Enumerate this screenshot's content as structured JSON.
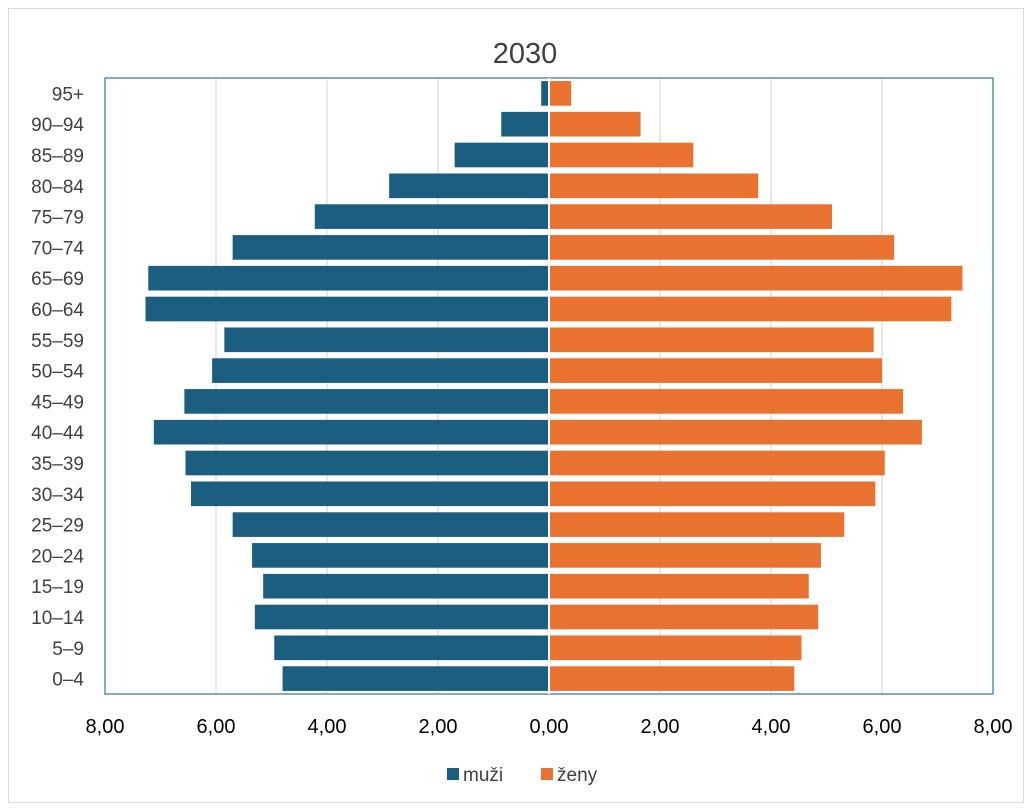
{
  "chart_data": {
    "type": "bar",
    "orientation": "horizontal",
    "title": "2030",
    "categories": [
      "0–4",
      "5–9",
      "10–14",
      "15–19",
      "20–24",
      "25–29",
      "30–34",
      "35–39",
      "40–44",
      "45–49",
      "50–54",
      "55–59",
      "60–64",
      "65–69",
      "70–74",
      "75–79",
      "80–84",
      "85–89",
      "90–94",
      "95+"
    ],
    "series": [
      {
        "name": "muži",
        "color": "#1b5e80",
        "side": "left",
        "values": [
          4.8,
          4.95,
          5.3,
          5.15,
          5.35,
          5.7,
          6.45,
          6.55,
          7.12,
          6.57,
          6.07,
          5.85,
          7.27,
          7.22,
          5.7,
          4.22,
          2.88,
          1.7,
          0.86,
          0.14
        ]
      },
      {
        "name": "ženy",
        "color": "#ea7231",
        "side": "right",
        "values": [
          4.42,
          4.55,
          4.85,
          4.68,
          4.9,
          5.32,
          5.88,
          6.05,
          6.72,
          6.38,
          6.0,
          5.85,
          7.25,
          7.45,
          6.22,
          5.1,
          3.77,
          2.6,
          1.65,
          0.4
        ]
      }
    ],
    "x_ticks": [
      "8,00",
      "6,00",
      "4,00",
      "2,00",
      "0,00",
      "2,00",
      "4,00",
      "6,00",
      "8,00"
    ],
    "xlim": [
      -8,
      8
    ],
    "grid": "vertical",
    "legend": "bottom"
  },
  "legend": {
    "items": [
      {
        "label": "muži",
        "color": "#1b5e80"
      },
      {
        "label": "ženy",
        "color": "#ea7231"
      }
    ]
  }
}
